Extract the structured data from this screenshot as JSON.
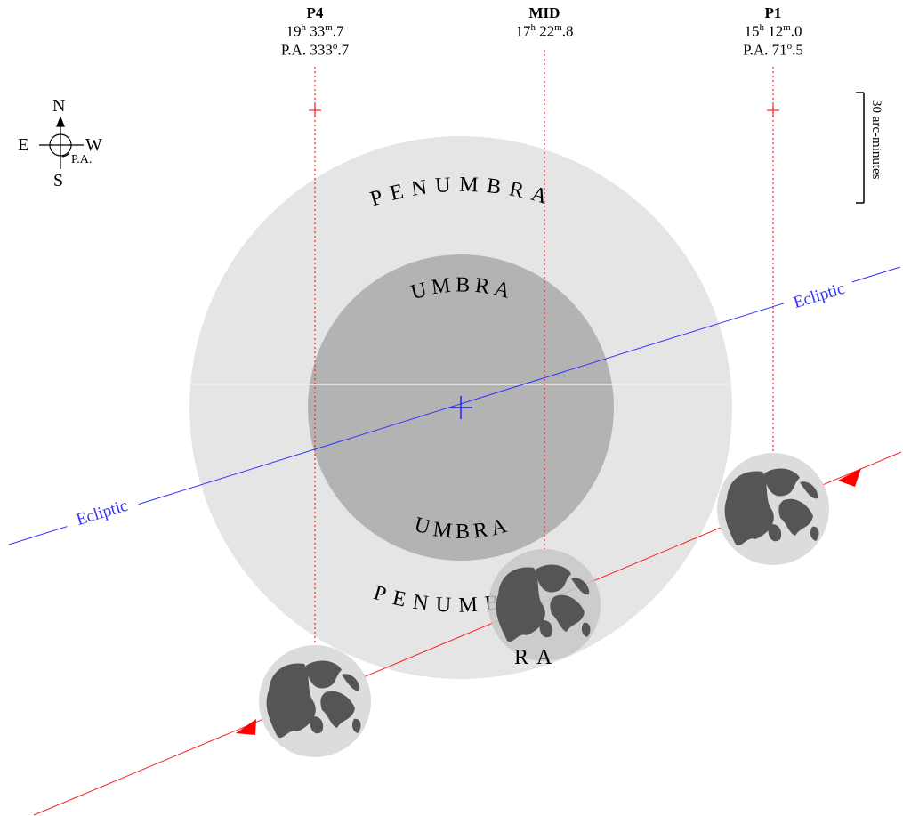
{
  "contacts": {
    "p4": {
      "name": "P4",
      "h": "19",
      "m": "33",
      "mfrac": "7",
      "pa_label": "P.A.",
      "pa_deg": "333",
      "pa_frac": "7"
    },
    "mid": {
      "name": "MID",
      "h": "17",
      "m": "22",
      "mfrac": "8"
    },
    "p1": {
      "name": "P1",
      "h": "15",
      "m": "12",
      "mfrac": "0",
      "pa_label": "P.A.",
      "pa_deg": "71",
      "pa_frac": "5"
    }
  },
  "units": {
    "hour": "h",
    "minute": "m",
    "degree": "o"
  },
  "compass": {
    "north": "N",
    "south": "S",
    "east": "E",
    "west": "W",
    "pa": "P.A."
  },
  "scale": {
    "label": "30 arc-minutes"
  },
  "regions": {
    "penumbra_top": "PENUMBRA",
    "penumbra_bottom": "PENUMB",
    "penumbra_bottom_tail": "RA",
    "umbra_top": "UMBRA",
    "umbra_bottom": "UMBRA"
  },
  "ecliptic": {
    "label_left": "Ecliptic",
    "label_right": "Ecliptic",
    "color": "#3333ff"
  },
  "path_color": "#ff2020",
  "colors": {
    "penumbra": "#e5e5e5",
    "umbra": "#b3b3b3",
    "moon_disk": "#dcdcdc",
    "maria": "#555555"
  }
}
